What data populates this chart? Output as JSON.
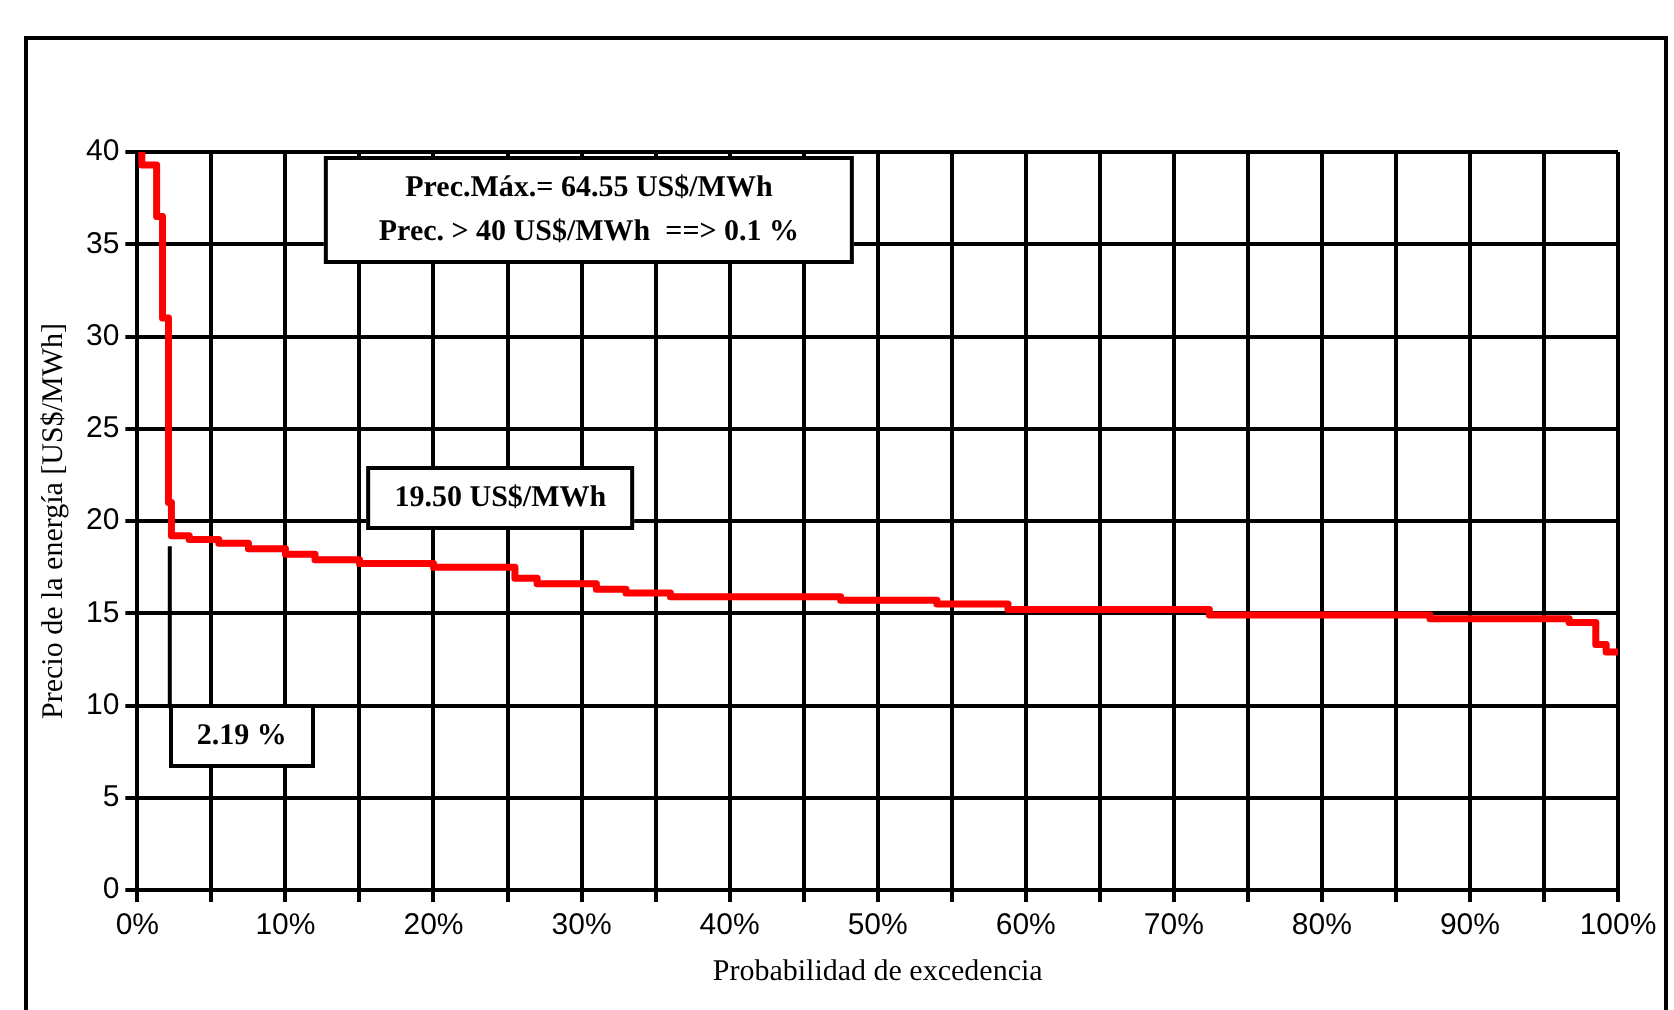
{
  "chart_data": {
    "type": "step",
    "xlabel": "Probabilidad de excedencia",
    "ylabel": "Precio de la energía [US$/MWh]",
    "x": [
      0.2,
      0.3,
      1.3,
      1.7,
      2.1,
      2.3,
      3.5,
      5.5,
      7.5,
      10,
      12,
      15,
      20,
      25.5,
      27,
      31,
      33,
      36,
      47.5,
      54,
      58.8,
      72.4,
      87.3,
      96.7,
      98.5,
      99.2,
      100
    ],
    "series": [
      {
        "color": "#ff0000",
        "values": [
          40,
          39.3,
          36.5,
          31,
          21,
          19.2,
          19.0,
          18.8,
          18.5,
          18.2,
          17.9,
          17.7,
          17.5,
          16.9,
          16.6,
          16.3,
          16.1,
          15.9,
          15.7,
          15.5,
          15.2,
          14.9,
          14.7,
          14.5,
          13.3,
          12.9,
          12.9
        ]
      }
    ],
    "xlim": [
      0,
      100
    ],
    "xticks": [
      {
        "value": 0,
        "label": "0%"
      },
      {
        "value": 5,
        "label": null
      },
      {
        "value": 10,
        "label": "10%"
      },
      {
        "value": 15,
        "label": null
      },
      {
        "value": 20,
        "label": "20%"
      },
      {
        "value": 25,
        "label": null
      },
      {
        "value": 30,
        "label": "30%"
      },
      {
        "value": 35,
        "label": null
      },
      {
        "value": 40,
        "label": "40%"
      },
      {
        "value": 45,
        "label": null
      },
      {
        "value": 50,
        "label": "50%"
      },
      {
        "value": 55,
        "label": null
      },
      {
        "value": 60,
        "label": "60%"
      },
      {
        "value": 65,
        "label": null
      },
      {
        "value": 70,
        "label": "70%"
      },
      {
        "value": 75,
        "label": null
      },
      {
        "value": 80,
        "label": "80%"
      },
      {
        "value": 85,
        "label": null
      },
      {
        "value": 90,
        "label": "90%"
      },
      {
        "value": 95,
        "label": null
      },
      {
        "value": 100,
        "label": "100%"
      }
    ],
    "ylim": [
      0,
      40
    ],
    "yticks": [
      0,
      5,
      10,
      15,
      20,
      25,
      30,
      35,
      40
    ],
    "grid": true,
    "legend": false,
    "marker": "none",
    "line_style": "solid",
    "annotations": [
      "Prec.Máx.= 64.55 US$/MWh",
      "Prec. > 40 US$/MWh  ==> 0.1 %",
      "19.50 US$/MWh",
      {
        "text": "2.19 %",
        "x": 2.19,
        "y": 19.5
      }
    ]
  }
}
